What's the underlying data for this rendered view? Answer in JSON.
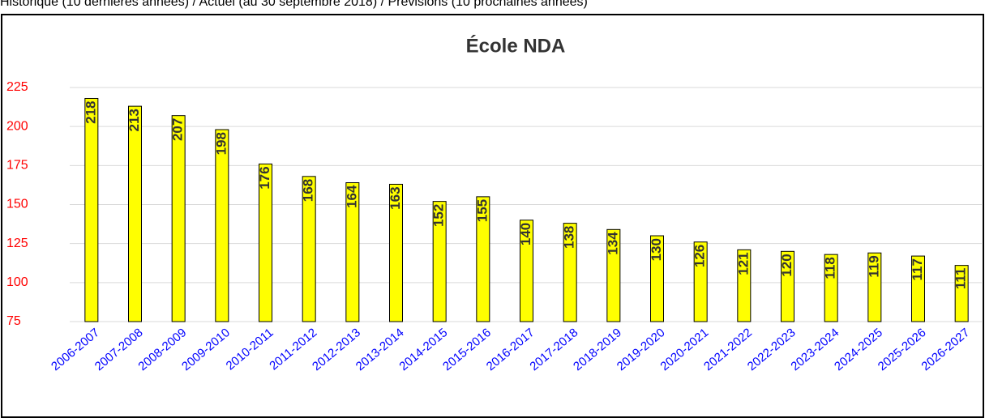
{
  "chart_data": {
    "type": "bar",
    "subtitle": "Historique (10 dernières années) / Actuel (au 30 septembre 2018) / Prévisions (10 prochaines années)",
    "title": "École NDA",
    "categories": [
      "2006-2007",
      "2007-2008",
      "2008-2009",
      "2009-2010",
      "2010-2011",
      "2011-2012",
      "2012-2013",
      "2013-2014",
      "2014-2015",
      "2015-2016",
      "2016-2017",
      "2017-2018",
      "2018-2019",
      "2019-2020",
      "2020-2021",
      "2021-2022",
      "2022-2023",
      "2023-2024",
      "2024-2025",
      "2025-2026",
      "2026-2027"
    ],
    "values": [
      218,
      213,
      207,
      198,
      176,
      168,
      164,
      163,
      152,
      155,
      140,
      138,
      134,
      130,
      126,
      121,
      120,
      118,
      119,
      117,
      111
    ],
    "color": "#ffff00",
    "ylim": [
      75,
      225
    ],
    "yticks": [
      75,
      100,
      125,
      150,
      175,
      200,
      225
    ],
    "grid": true
  }
}
